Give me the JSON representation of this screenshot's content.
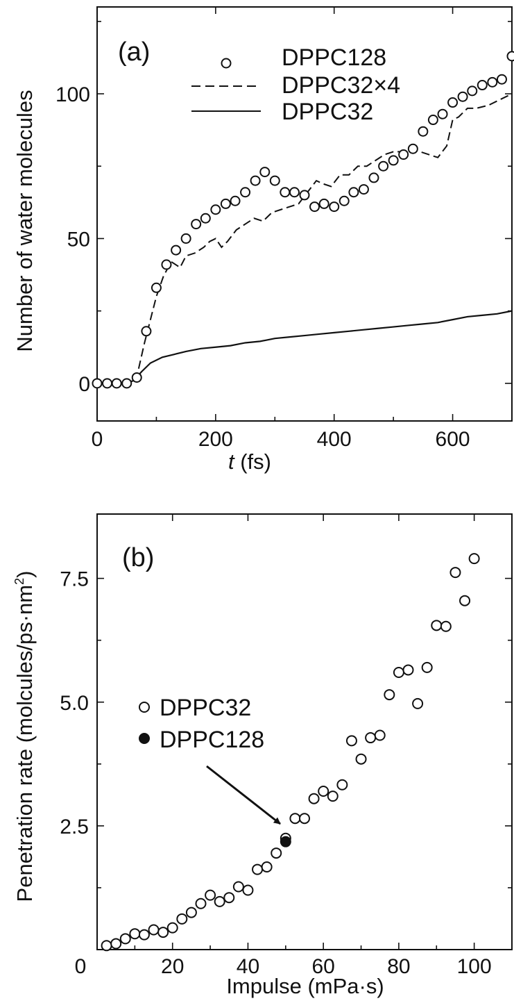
{
  "chart_data": [
    {
      "type": "line",
      "panel_label": "(a)",
      "xlabel_italic": "t",
      "xlabel_unit": " (fs)",
      "ylabel": "Number of water molecules",
      "xlim": [
        0,
        700
      ],
      "ylim": [
        -13,
        130
      ],
      "x_ticks": [
        0,
        200,
        400,
        600
      ],
      "y_ticks": [
        0,
        50,
        100
      ],
      "legend_placement": "top-right",
      "series": [
        {
          "name": "DPPC128",
          "style": "open-circle",
          "points": [
            [
              0,
              0
            ],
            [
              17,
              0
            ],
            [
              33,
              0
            ],
            [
              50,
              0
            ],
            [
              67,
              2
            ],
            [
              83,
              18
            ],
            [
              100,
              33
            ],
            [
              117,
              41
            ],
            [
              133,
              46
            ],
            [
              150,
              50
            ],
            [
              167,
              55
            ],
            [
              183,
              57
            ],
            [
              200,
              60
            ],
            [
              217,
              62
            ],
            [
              233,
              63
            ],
            [
              250,
              66
            ],
            [
              267,
              70
            ],
            [
              283,
              73
            ],
            [
              300,
              70
            ],
            [
              317,
              66
            ],
            [
              333,
              66
            ],
            [
              350,
              65
            ],
            [
              367,
              61
            ],
            [
              383,
              62
            ],
            [
              400,
              61
            ],
            [
              417,
              63
            ],
            [
              433,
              66
            ],
            [
              450,
              67
            ],
            [
              467,
              71
            ],
            [
              483,
              75
            ],
            [
              500,
              77
            ],
            [
              517,
              79
            ],
            [
              533,
              81
            ],
            [
              550,
              87
            ],
            [
              567,
              91
            ],
            [
              583,
              93
            ],
            [
              600,
              97
            ],
            [
              617,
              99
            ],
            [
              633,
              101
            ],
            [
              650,
              103
            ],
            [
              667,
              104
            ],
            [
              683,
              105
            ],
            [
              700,
              113
            ]
          ]
        },
        {
          "name": "DPPC32×4",
          "style": "dashed",
          "points": [
            [
              0,
              0
            ],
            [
              50,
              0
            ],
            [
              62,
              1
            ],
            [
              70,
              5
            ],
            [
              80,
              14
            ],
            [
              90,
              22
            ],
            [
              100,
              30
            ],
            [
              112,
              37
            ],
            [
              125,
              42
            ],
            [
              140,
              40
            ],
            [
              150,
              44
            ],
            [
              165,
              45
            ],
            [
              180,
              47
            ],
            [
              190,
              49
            ],
            [
              200,
              50
            ],
            [
              210,
              47
            ],
            [
              220,
              49
            ],
            [
              235,
              53
            ],
            [
              250,
              55
            ],
            [
              265,
              57
            ],
            [
              280,
              56
            ],
            [
              295,
              59
            ],
            [
              310,
              60
            ],
            [
              325,
              61
            ],
            [
              340,
              62
            ],
            [
              355,
              66
            ],
            [
              370,
              70
            ],
            [
              380,
              69
            ],
            [
              395,
              68
            ],
            [
              410,
              72
            ],
            [
              425,
              72
            ],
            [
              440,
              75
            ],
            [
              455,
              75
            ],
            [
              470,
              77
            ],
            [
              485,
              79
            ],
            [
              500,
              80
            ],
            [
              515,
              80
            ],
            [
              530,
              81
            ],
            [
              545,
              80
            ],
            [
              560,
              79
            ],
            [
              575,
              78
            ],
            [
              590,
              82
            ],
            [
              600,
              91
            ],
            [
              610,
              92
            ],
            [
              625,
              95
            ],
            [
              640,
              95
            ],
            [
              660,
              96
            ],
            [
              680,
              98
            ],
            [
              700,
              100
            ]
          ]
        },
        {
          "name": "DPPC32",
          "style": "solid",
          "points": [
            [
              0,
              0
            ],
            [
              50,
              0
            ],
            [
              62,
              1
            ],
            [
              75,
              4
            ],
            [
              90,
              7
            ],
            [
              110,
              9
            ],
            [
              130,
              10
            ],
            [
              150,
              11
            ],
            [
              175,
              12
            ],
            [
              200,
              12.5
            ],
            [
              225,
              13
            ],
            [
              250,
              14
            ],
            [
              275,
              14.5
            ],
            [
              300,
              15.5
            ],
            [
              325,
              16
            ],
            [
              350,
              16.5
            ],
            [
              375,
              17
            ],
            [
              400,
              17.5
            ],
            [
              425,
              18
            ],
            [
              450,
              18.5
            ],
            [
              475,
              19
            ],
            [
              500,
              19.5
            ],
            [
              525,
              20
            ],
            [
              550,
              20.5
            ],
            [
              575,
              21
            ],
            [
              600,
              22
            ],
            [
              625,
              23
            ],
            [
              650,
              23.5
            ],
            [
              675,
              24
            ],
            [
              700,
              25
            ]
          ]
        }
      ]
    },
    {
      "type": "scatter",
      "panel_label": "(b)",
      "xlabel": "Impulse (mPa·s)",
      "ylabel_main": "Penetration rate ",
      "ylabel_unit": "(molcules/ps·nm",
      "ylabel_sup": "2",
      "ylabel_close": ")",
      "xlim": [
        0,
        110
      ],
      "ylim": [
        0,
        8.8
      ],
      "x_ticks": [
        0,
        20,
        40,
        60,
        80,
        100
      ],
      "y_ticks": [
        0,
        2.5,
        5.0,
        7.5
      ],
      "y_tick_labels": [
        "0",
        "2.5",
        "5.0",
        "7.5"
      ],
      "legend_placement": "center-left",
      "annotation": "arrow pointing to DPPC128 point",
      "series": [
        {
          "name": "DPPC32",
          "style": "open-circle",
          "points": [
            [
              2.5,
              0.08
            ],
            [
              5,
              0.12
            ],
            [
              7.5,
              0.22
            ],
            [
              10,
              0.32
            ],
            [
              12.5,
              0.3
            ],
            [
              15,
              0.4
            ],
            [
              17.5,
              0.35
            ],
            [
              20,
              0.44
            ],
            [
              22.5,
              0.62
            ],
            [
              25,
              0.75
            ],
            [
              27.5,
              0.93
            ],
            [
              30,
              1.1
            ],
            [
              32.5,
              0.97
            ],
            [
              35,
              1.05
            ],
            [
              37.5,
              1.27
            ],
            [
              40,
              1.2
            ],
            [
              42.5,
              1.62
            ],
            [
              45,
              1.67
            ],
            [
              47.5,
              1.95
            ],
            [
              50,
              2.25
            ],
            [
              52.5,
              2.65
            ],
            [
              55,
              2.65
            ],
            [
              57.5,
              3.05
            ],
            [
              60,
              3.2
            ],
            [
              62.5,
              3.1
            ],
            [
              65,
              3.33
            ],
            [
              67.5,
              4.22
            ],
            [
              70,
              3.85
            ],
            [
              72.5,
              4.28
            ],
            [
              75,
              4.33
            ],
            [
              77.5,
              5.15
            ],
            [
              80,
              5.6
            ],
            [
              82.5,
              5.65
            ],
            [
              85,
              4.97
            ],
            [
              87.5,
              5.7
            ],
            [
              90,
              6.55
            ],
            [
              92.5,
              6.53
            ],
            [
              95,
              7.62
            ],
            [
              97.5,
              7.05
            ],
            [
              100,
              7.9
            ]
          ]
        },
        {
          "name": "DPPC128",
          "style": "filled-circle",
          "points": [
            [
              50,
              2.18
            ]
          ]
        }
      ]
    }
  ]
}
